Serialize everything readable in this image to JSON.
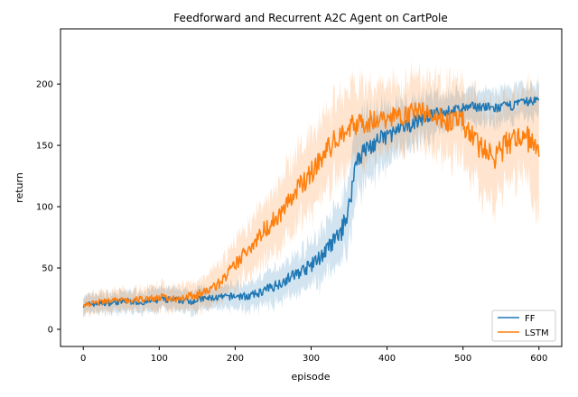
{
  "chart_data": {
    "type": "line",
    "title": "Feedforward and Recurrent A2C Agent on CartPole",
    "xlabel": "episode",
    "ylabel": "return",
    "xlim": [
      -30,
      630
    ],
    "ylim": [
      -14,
      245
    ],
    "x_ticks": [
      0,
      100,
      200,
      300,
      400,
      500,
      600
    ],
    "y_ticks": [
      0,
      50,
      100,
      150,
      200
    ],
    "grid": false,
    "legend": {
      "position": "lower-right",
      "entries": [
        "FF",
        "LSTM"
      ]
    },
    "series": [
      {
        "name": "FF",
        "color": "#1f77b4",
        "band_color": "#1f77b4",
        "points": [
          [
            0,
            20
          ],
          [
            20,
            21
          ],
          [
            40,
            22
          ],
          [
            60,
            23
          ],
          [
            80,
            22
          ],
          [
            100,
            24
          ],
          [
            120,
            24
          ],
          [
            140,
            23
          ],
          [
            160,
            25
          ],
          [
            180,
            26
          ],
          [
            200,
            27
          ],
          [
            220,
            27
          ],
          [
            240,
            32
          ],
          [
            260,
            38
          ],
          [
            280,
            45
          ],
          [
            300,
            52
          ],
          [
            320,
            64
          ],
          [
            340,
            80
          ],
          [
            350,
            100
          ],
          [
            360,
            140
          ],
          [
            380,
            150
          ],
          [
            400,
            158
          ],
          [
            420,
            163
          ],
          [
            440,
            170
          ],
          [
            460,
            175
          ],
          [
            480,
            178
          ],
          [
            500,
            180
          ],
          [
            520,
            182
          ],
          [
            540,
            180
          ],
          [
            560,
            182
          ],
          [
            580,
            185
          ],
          [
            600,
            187
          ]
        ],
        "band_width": [
          8,
          8,
          9,
          9,
          9,
          10,
          10,
          10,
          10,
          10,
          11,
          12,
          14,
          16,
          18,
          20,
          24,
          28,
          30,
          32,
          30,
          26,
          22,
          20,
          18,
          16,
          15,
          15,
          15,
          15,
          14,
          14
        ]
      },
      {
        "name": "LSTM",
        "color": "#ff7f0e",
        "band_color": "#ff7f0e",
        "points": [
          [
            0,
            20
          ],
          [
            20,
            22
          ],
          [
            40,
            24
          ],
          [
            60,
            23
          ],
          [
            80,
            25
          ],
          [
            100,
            26
          ],
          [
            120,
            25
          ],
          [
            140,
            27
          ],
          [
            160,
            30
          ],
          [
            180,
            38
          ],
          [
            200,
            52
          ],
          [
            220,
            68
          ],
          [
            240,
            82
          ],
          [
            260,
            95
          ],
          [
            280,
            112
          ],
          [
            300,
            128
          ],
          [
            320,
            145
          ],
          [
            340,
            160
          ],
          [
            360,
            168
          ],
          [
            380,
            170
          ],
          [
            400,
            172
          ],
          [
            420,
            175
          ],
          [
            440,
            178
          ],
          [
            460,
            175
          ],
          [
            480,
            170
          ],
          [
            500,
            168
          ],
          [
            520,
            150
          ],
          [
            540,
            140
          ],
          [
            560,
            152
          ],
          [
            580,
            160
          ],
          [
            590,
            150
          ],
          [
            600,
            154
          ]
        ],
        "band_width": [
          8,
          9,
          9,
          10,
          10,
          11,
          11,
          12,
          14,
          16,
          20,
          24,
          28,
          30,
          32,
          34,
          35,
          36,
          34,
          32,
          30,
          30,
          30,
          32,
          34,
          35,
          40,
          40,
          38,
          35,
          50,
          55
        ]
      }
    ]
  }
}
